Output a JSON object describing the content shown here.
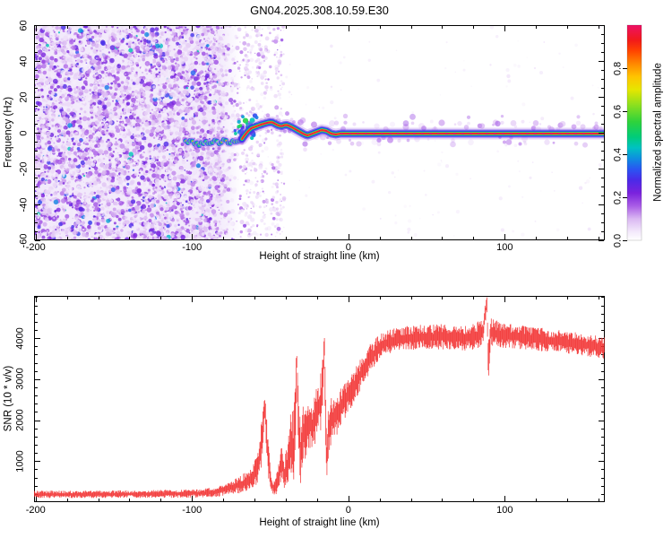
{
  "title": "GN04.2025.308.10.59.E30",
  "colors": {
    "background": "#ffffff",
    "frame": "#000000",
    "snr_line": "#f23333",
    "trace_core": "#eb1158",
    "trace_blue": "#2b3cf0",
    "trace_green": "#00cc88",
    "noise_purple": "#7a22dd"
  },
  "chart_data": [
    {
      "type": "heatmap",
      "role": "spectrogram",
      "xlabel": "Height of straight line (km)",
      "ylabel": "Frequency (Hz)",
      "xlim": [
        -201,
        164
      ],
      "ylim": [
        -60,
        60
      ],
      "x_ticks": [
        -200,
        -100,
        0,
        100
      ],
      "x_minor_step": 20,
      "y_ticks": [
        60,
        40,
        20,
        0,
        -20,
        -40,
        -60
      ],
      "y_minor_step": 5,
      "colorbar": {
        "label": "Normalized spectral amplitude",
        "ticks": [
          0,
          0.2,
          0.4,
          0.6,
          0.8
        ],
        "tick_labels": [
          "0.0",
          "0.2",
          "0.4",
          "0.6",
          "0.8"
        ],
        "lim": [
          0,
          1
        ],
        "stops": [
          [
            0.0,
            "#ffffff"
          ],
          [
            0.04,
            "#f3e9fb"
          ],
          [
            0.1,
            "#dab8f2"
          ],
          [
            0.16,
            "#a95ce6"
          ],
          [
            0.22,
            "#7a22dd"
          ],
          [
            0.28,
            "#4b2ae8"
          ],
          [
            0.33,
            "#2a55f2"
          ],
          [
            0.38,
            "#0e8ee0"
          ],
          [
            0.43,
            "#00c2c2"
          ],
          [
            0.48,
            "#00cc7a"
          ],
          [
            0.55,
            "#2ed23c"
          ],
          [
            0.63,
            "#8ee01e"
          ],
          [
            0.7,
            "#e6e600"
          ],
          [
            0.76,
            "#ffc400"
          ],
          [
            0.82,
            "#ff8800"
          ],
          [
            0.88,
            "#ff4400"
          ],
          [
            0.93,
            "#f21a1a"
          ],
          [
            1.0,
            "#ed1166"
          ]
        ]
      },
      "noise_region": {
        "x_range": [
          -200,
          -45
        ],
        "dense_until": -85,
        "amplitude_range": [
          0.02,
          0.35
        ]
      },
      "scatter_cluster": {
        "x_range": [
          -72,
          -59
        ],
        "hz_range": [
          -6,
          10
        ]
      },
      "ridge_km_hz": [
        [
          -104,
          -5.5
        ],
        [
          -100,
          -5
        ],
        [
          -96,
          -6.5
        ],
        [
          -92,
          -5
        ],
        [
          -88,
          -6
        ],
        [
          -85,
          -4.5
        ],
        [
          -82,
          -5.5
        ],
        [
          -79,
          -4.5
        ],
        [
          -76,
          -6
        ],
        [
          -73,
          -4.5
        ],
        [
          -70,
          -5
        ],
        [
          -68,
          -3.5
        ],
        [
          -66,
          -1
        ],
        [
          -64,
          1
        ],
        [
          -62,
          2.5
        ],
        [
          -59,
          3.5
        ],
        [
          -56,
          4.5
        ],
        [
          -52,
          5.5
        ],
        [
          -49,
          6
        ],
        [
          -46,
          4.5
        ],
        [
          -43,
          3.5
        ],
        [
          -40,
          4.5
        ],
        [
          -37,
          3.5
        ],
        [
          -34,
          2
        ],
        [
          -31,
          0.5
        ],
        [
          -28,
          -1
        ],
        [
          -26,
          -1.5
        ],
        [
          -23,
          -0.5
        ],
        [
          -20,
          0.5
        ],
        [
          -17,
          1.5
        ],
        [
          -14,
          1
        ],
        [
          -11,
          -0.5
        ],
        [
          -8,
          -1
        ],
        [
          -5,
          -0.5
        ],
        [
          -2,
          -0.5
        ],
        [
          2,
          -0.5
        ],
        [
          164,
          -0.5
        ]
      ],
      "straight_line_amplitude": 1.0
    },
    {
      "type": "line",
      "role": "snr-profile",
      "xlabel": "Height of straight line (km)",
      "ylabel": "SNR (10 * v/v)",
      "xlim": [
        -201,
        164
      ],
      "ylim": [
        0,
        5030
      ],
      "x_ticks": [
        -200,
        -100,
        0,
        100
      ],
      "x_minor_step": 20,
      "y_ticks": [
        1000,
        2000,
        3000,
        4000
      ],
      "y_minor_step": 200,
      "series": [
        {
          "name": "SNR",
          "color": "#f23333",
          "anchors_km_mean_noise": [
            [
              -200,
              190,
              90
            ],
            [
              -170,
              190,
              90
            ],
            [
              -140,
              195,
              95
            ],
            [
              -110,
              205,
              100
            ],
            [
              -95,
              215,
              105
            ],
            [
              -85,
              245,
              120
            ],
            [
              -78,
              310,
              150
            ],
            [
              -72,
              390,
              190
            ],
            [
              -66,
              480,
              240
            ],
            [
              -62,
              600,
              280
            ],
            [
              -58,
              800,
              350
            ],
            [
              -55,
              1600,
              700
            ],
            [
              -53.5,
              2350,
              350
            ],
            [
              -52,
              1400,
              600
            ],
            [
              -50,
              600,
              300
            ],
            [
              -48,
              330,
              180
            ],
            [
              -46,
              400,
              250
            ],
            [
              -44,
              800,
              400
            ],
            [
              -42.5,
              1000,
              450
            ],
            [
              -41,
              650,
              380
            ],
            [
              -39,
              900,
              600
            ],
            [
              -37,
              1400,
              900
            ],
            [
              -35,
              1300,
              900
            ],
            [
              -33.5,
              2600,
              900
            ],
            [
              -33,
              3550,
              350
            ],
            [
              -32,
              2000,
              1000
            ],
            [
              -30.5,
              1100,
              650
            ],
            [
              -29,
              1700,
              700
            ],
            [
              -27,
              1700,
              650
            ],
            [
              -25,
              1950,
              600
            ],
            [
              -23,
              1800,
              600
            ],
            [
              -21,
              2100,
              650
            ],
            [
              -19,
              2300,
              700
            ],
            [
              -17,
              2500,
              750
            ],
            [
              -15.3,
              3850,
              300
            ],
            [
              -14.5,
              2000,
              900
            ],
            [
              -13.8,
              900,
              700
            ],
            [
              -13,
              1700,
              700
            ],
            [
              -11,
              2000,
              600
            ],
            [
              -9,
              2100,
              550
            ],
            [
              -7,
              2150,
              520
            ],
            [
              -5,
              2300,
              500
            ],
            [
              -3,
              2450,
              480
            ],
            [
              -1,
              2550,
              460
            ],
            [
              1,
              2650,
              440
            ],
            [
              4,
              2850,
              420
            ],
            [
              7,
              3050,
              400
            ],
            [
              10,
              3250,
              380
            ],
            [
              13,
              3450,
              360
            ],
            [
              16,
              3600,
              340
            ],
            [
              20,
              3780,
              320
            ],
            [
              24,
              3880,
              300
            ],
            [
              28,
              3930,
              300
            ],
            [
              35,
              3980,
              300
            ],
            [
              45,
              4030,
              310
            ],
            [
              55,
              4020,
              310
            ],
            [
              65,
              4040,
              320
            ],
            [
              75,
              4010,
              320
            ],
            [
              82,
              4060,
              330
            ],
            [
              86,
              4120,
              340
            ],
            [
              88.5,
              4850,
              250
            ],
            [
              89.5,
              3500,
              700
            ],
            [
              91,
              4150,
              350
            ],
            [
              95,
              4100,
              330
            ],
            [
              105,
              4050,
              300
            ],
            [
              115,
              4000,
              290
            ],
            [
              125,
              3960,
              285
            ],
            [
              135,
              3920,
              280
            ],
            [
              145,
              3870,
              275
            ],
            [
              155,
              3810,
              270
            ],
            [
              164,
              3760,
              265
            ]
          ]
        }
      ]
    }
  ]
}
